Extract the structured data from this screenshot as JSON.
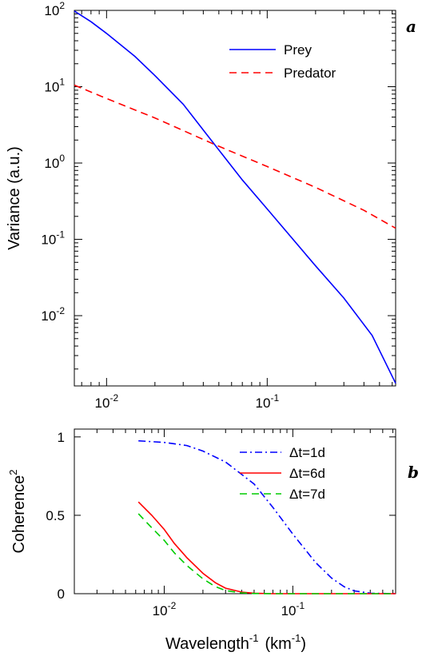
{
  "chart_data": [
    {
      "type": "line",
      "panel_label": "a",
      "title": "",
      "xlabel": "",
      "ylabel": "Variance (a.u.)",
      "xscale": "log",
      "yscale": "log",
      "xlim": [
        0.0063,
        0.63
      ],
      "ylim": [
        0.0012,
        100
      ],
      "grid": false,
      "legend_position": "top-right",
      "x_ticks": [
        {
          "value": 0.01,
          "base": "10",
          "exp": "-2"
        },
        {
          "value": 0.1,
          "base": "10",
          "exp": "-1"
        }
      ],
      "y_ticks": [
        {
          "value": 0.01,
          "base": "10",
          "exp": "-2"
        },
        {
          "value": 0.1,
          "base": "10",
          "exp": "-1"
        },
        {
          "value": 1,
          "base": "10",
          "exp": "0"
        },
        {
          "value": 10,
          "base": "10",
          "exp": "1"
        },
        {
          "value": 100,
          "base": "10",
          "exp": "2"
        }
      ],
      "series": [
        {
          "name": "Prey",
          "color": "#0000ff",
          "dash": "solid",
          "points": [
            [
              0.0063,
              98
            ],
            [
              0.008,
              71
            ],
            [
              0.01,
              50
            ],
            [
              0.015,
              25
            ],
            [
              0.02,
              14
            ],
            [
              0.03,
              5.9
            ],
            [
              0.047,
              1.75
            ],
            [
              0.07,
              0.6
            ],
            [
              0.1,
              0.25
            ],
            [
              0.2,
              0.045
            ],
            [
              0.3,
              0.017
            ],
            [
              0.45,
              0.0055
            ],
            [
              0.63,
              0.0013
            ]
          ]
        },
        {
          "name": "Predator",
          "color": "#ff0000",
          "dash": "dashed",
          "points": [
            [
              0.0063,
              10.5
            ],
            [
              0.01,
              7.0
            ],
            [
              0.02,
              3.9
            ],
            [
              0.047,
              1.75
            ],
            [
              0.1,
              0.9
            ],
            [
              0.2,
              0.48
            ],
            [
              0.4,
              0.24
            ],
            [
              0.63,
              0.14
            ]
          ]
        }
      ]
    },
    {
      "type": "line",
      "panel_label": "b",
      "title": "",
      "xlabel_base": "Wavelength",
      "xlabel_exp": "-1",
      "xlabel_unit_pre": "(km",
      "xlabel_unit_exp": "-1",
      "xlabel_unit_post": ")",
      "ylabel_base": "Coherence",
      "ylabel_exp": "2",
      "xscale": "log",
      "yscale": "linear",
      "xlim": [
        0.002,
        0.63
      ],
      "ylim": [
        0,
        1.05
      ],
      "grid": false,
      "legend_position": "top-right",
      "x_ticks": [
        {
          "value": 0.01,
          "base": "10",
          "exp": "-2"
        },
        {
          "value": 0.1,
          "base": "10",
          "exp": "-1"
        }
      ],
      "y_ticks": [
        {
          "value": 0,
          "label": "0"
        },
        {
          "value": 0.5,
          "label": "0.5"
        },
        {
          "value": 1,
          "label": "1"
        }
      ],
      "series": [
        {
          "name": "Δt=1d",
          "color": "#0000ff",
          "dash": "dashdot",
          "points": [
            [
              0.0063,
              0.975
            ],
            [
              0.01,
              0.965
            ],
            [
              0.015,
              0.945
            ],
            [
              0.02,
              0.91
            ],
            [
              0.03,
              0.84
            ],
            [
              0.05,
              0.7
            ],
            [
              0.07,
              0.55
            ],
            [
              0.1,
              0.38
            ],
            [
              0.15,
              0.2
            ],
            [
              0.2,
              0.1
            ],
            [
              0.25,
              0.045
            ],
            [
              0.3,
              0.018
            ],
            [
              0.4,
              0.003
            ],
            [
              0.63,
              0.0
            ]
          ]
        },
        {
          "name": "Δt=6d",
          "color": "#ff0000",
          "dash": "solid",
          "points": [
            [
              0.0063,
              0.585
            ],
            [
              0.008,
              0.5
            ],
            [
              0.01,
              0.41
            ],
            [
              0.012,
              0.32
            ],
            [
              0.015,
              0.23
            ],
            [
              0.02,
              0.13
            ],
            [
              0.025,
              0.07
            ],
            [
              0.03,
              0.035
            ],
            [
              0.04,
              0.01
            ],
            [
              0.05,
              0.003
            ],
            [
              0.07,
              0.0
            ],
            [
              0.63,
              0.0
            ]
          ]
        },
        {
          "name": "Δt=7d",
          "color": "#00cc00",
          "dash": "dashed",
          "points": [
            [
              0.0063,
              0.51
            ],
            [
              0.008,
              0.42
            ],
            [
              0.01,
              0.34
            ],
            [
              0.012,
              0.26
            ],
            [
              0.015,
              0.18
            ],
            [
              0.02,
              0.095
            ],
            [
              0.025,
              0.045
            ],
            [
              0.03,
              0.02
            ],
            [
              0.04,
              0.005
            ],
            [
              0.05,
              0.001
            ],
            [
              0.07,
              0.0
            ],
            [
              0.63,
              0.0
            ]
          ]
        }
      ]
    }
  ]
}
